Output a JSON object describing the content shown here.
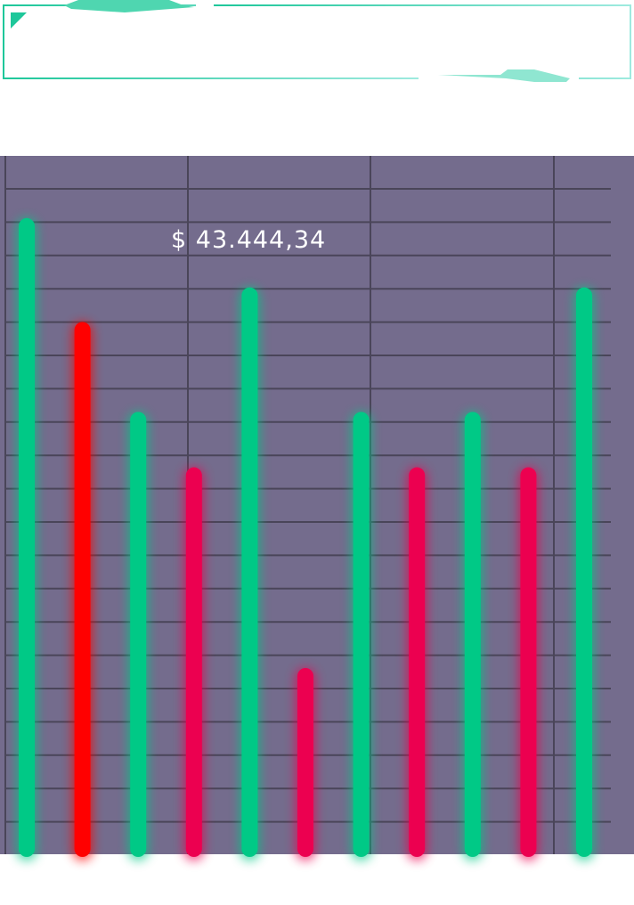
{
  "header": {
    "left_label": "",
    "right_label": ""
  },
  "colors": {
    "background": "#746c8d",
    "grid": "#4a4559",
    "frame": "#1ec79a",
    "green": "#00c986",
    "red": "#ff0000",
    "crimson": "#ec0050"
  },
  "chart_data": {
    "type": "bar",
    "title": "",
    "xlabel": "",
    "ylabel": "",
    "grid": true,
    "annotation": "$ 43.444,34",
    "x_ticks": [
      "",
      "",
      "",
      ""
    ],
    "ylim": [
      0,
      100
    ],
    "values": [
      91,
      76,
      63,
      55,
      81,
      26,
      63,
      55,
      63,
      55,
      81
    ],
    "bar_colors": [
      "green",
      "red",
      "green",
      "crimson",
      "green",
      "crimson",
      "green",
      "crimson",
      "green",
      "crimson",
      "green"
    ]
  }
}
